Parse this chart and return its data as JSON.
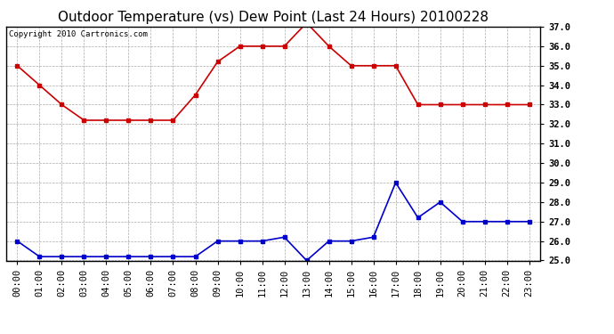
{
  "title": "Outdoor Temperature (vs) Dew Point (Last 24 Hours) 20100228",
  "copyright": "Copyright 2010 Cartronics.com",
  "hours": [
    "00:00",
    "01:00",
    "02:00",
    "03:00",
    "04:00",
    "05:00",
    "06:00",
    "07:00",
    "08:00",
    "09:00",
    "10:00",
    "11:00",
    "12:00",
    "13:00",
    "14:00",
    "15:00",
    "16:00",
    "17:00",
    "18:00",
    "19:00",
    "20:00",
    "21:00",
    "22:00",
    "23:00"
  ],
  "temp": [
    35.0,
    34.0,
    33.0,
    32.2,
    32.2,
    32.2,
    32.2,
    32.2,
    33.5,
    35.2,
    36.0,
    36.0,
    36.0,
    37.2,
    36.0,
    35.0,
    35.0,
    35.0,
    33.0,
    33.0,
    33.0,
    33.0,
    33.0,
    33.0
  ],
  "dew": [
    26.0,
    25.2,
    25.2,
    25.2,
    25.2,
    25.2,
    25.2,
    25.2,
    25.2,
    26.0,
    26.0,
    26.0,
    26.2,
    25.0,
    26.0,
    26.0,
    26.2,
    29.0,
    27.2,
    28.0,
    27.0,
    27.0,
    27.0,
    27.0
  ],
  "ylim": [
    25.0,
    37.0
  ],
  "yticks": [
    25.0,
    26.0,
    27.0,
    28.0,
    29.0,
    30.0,
    31.0,
    32.0,
    33.0,
    34.0,
    35.0,
    36.0,
    37.0
  ],
  "temp_color": "#cc0000",
  "dew_color": "#0000cc",
  "bg_color": "#ffffff",
  "plot_bg_color": "#ffffff",
  "grid_color": "#aaaaaa",
  "marker": "s",
  "marker_size": 3,
  "line_width": 1.2,
  "title_fontsize": 11,
  "tick_fontsize": 7.5,
  "copyright_fontsize": 6.5
}
